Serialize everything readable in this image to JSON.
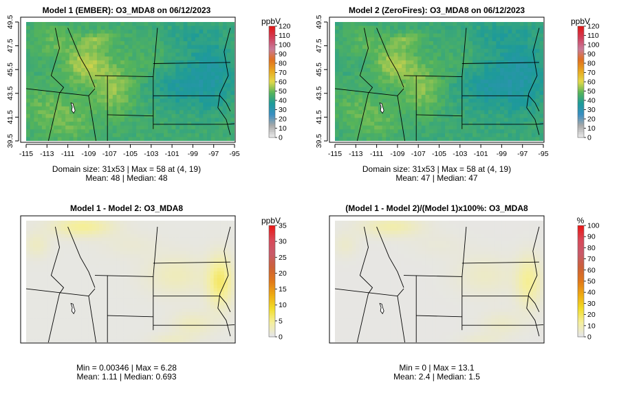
{
  "chart_data": [
    {
      "type": "heatmap",
      "panel": "top-left",
      "title": "Model 1 (EMBER): O3_MDA8 on 06/12/2023",
      "colorbar_unit": "ppbV",
      "colorbar_ticks": [
        "0",
        "10",
        "20",
        "30",
        "40",
        "50",
        "60",
        "70",
        "80",
        "90",
        "100",
        "110",
        "120"
      ],
      "colorbar_range": [
        0,
        120
      ],
      "palette": "ozone",
      "x_ticks": [
        "-115",
        "-113",
        "-111",
        "-109",
        "-107",
        "-105",
        "-103",
        "-101",
        "-99",
        "-97",
        "-95"
      ],
      "y_ticks": [
        "39.5",
        "41.5",
        "43.5",
        "45.5",
        "47.5",
        "49.5"
      ],
      "xlim": [
        -115,
        -95
      ],
      "ylim": [
        39.5,
        49.5
      ],
      "stats_line1": "Domain size: 31x53 | Max = 58 at (4, 19)",
      "stats_line2": "Mean: 48 |  Median: 48",
      "mean": 48,
      "max": 58
    },
    {
      "type": "heatmap",
      "panel": "top-right",
      "title": "Model 2 (ZeroFires): O3_MDA8 on 06/12/2023",
      "colorbar_unit": "ppbV",
      "colorbar_ticks": [
        "0",
        "10",
        "20",
        "30",
        "40",
        "50",
        "60",
        "70",
        "80",
        "90",
        "100",
        "110",
        "120"
      ],
      "colorbar_range": [
        0,
        120
      ],
      "palette": "ozone",
      "x_ticks": [
        "-115",
        "-113",
        "-111",
        "-109",
        "-107",
        "-105",
        "-103",
        "-101",
        "-99",
        "-97",
        "-95"
      ],
      "y_ticks": [
        "39.5",
        "41.5",
        "43.5",
        "45.5",
        "47.5",
        "49.5"
      ],
      "xlim": [
        -115,
        -95
      ],
      "ylim": [
        39.5,
        49.5
      ],
      "stats_line1": "Domain size: 31x53 | Max = 58 at (4, 19)",
      "stats_line2": "Mean: 47 |  Median: 47",
      "mean": 47,
      "max": 58
    },
    {
      "type": "heatmap",
      "panel": "bottom-left",
      "title": "Model 1 - Model 2: O3_MDA8",
      "colorbar_unit": "ppbV",
      "colorbar_ticks": [
        "0",
        "5",
        "10",
        "15",
        "20",
        "25",
        "30",
        "35"
      ],
      "colorbar_range": [
        0,
        35
      ],
      "palette": "difference",
      "stats_line1": "Min = 0.00346 | Max = 6.28",
      "stats_line2": "Mean: 1.11 |  Median: 0.693",
      "min": 0.00346,
      "max": 6.28,
      "mean": 1.11,
      "median": 0.693
    },
    {
      "type": "heatmap",
      "panel": "bottom-right",
      "title": "(Model 1 - Model 2)/(Model 1)x100%: O3_MDA8",
      "colorbar_unit": "%",
      "colorbar_ticks": [
        "0",
        "10",
        "20",
        "30",
        "40",
        "50",
        "60",
        "70",
        "80",
        "90",
        "100"
      ],
      "colorbar_range": [
        0,
        100
      ],
      "palette": "difference",
      "stats_line1": "Min = 0 | Max = 13.1",
      "stats_line2": "Mean: 2.4 |  Median: 1.5",
      "min": 0,
      "max": 13.1,
      "mean": 2.4,
      "median": 1.5
    }
  ],
  "colors": {
    "ozone_stops": [
      "#e6e6e6",
      "#a8a8a8",
      "#3a8ec2",
      "#1d9a9a",
      "#56b45a",
      "#e2d94a",
      "#e8a61e",
      "#e07020",
      "#c87a9a",
      "#d0405a",
      "#e01818"
    ],
    "diff_stops": [
      "#e6e6e6",
      "#f5ef9a",
      "#f2dc28",
      "#eeaa12",
      "#e0781a",
      "#cc6038",
      "#c85a6a",
      "#d84858",
      "#e81818"
    ],
    "border": "#000000",
    "background": "#ffffff"
  }
}
